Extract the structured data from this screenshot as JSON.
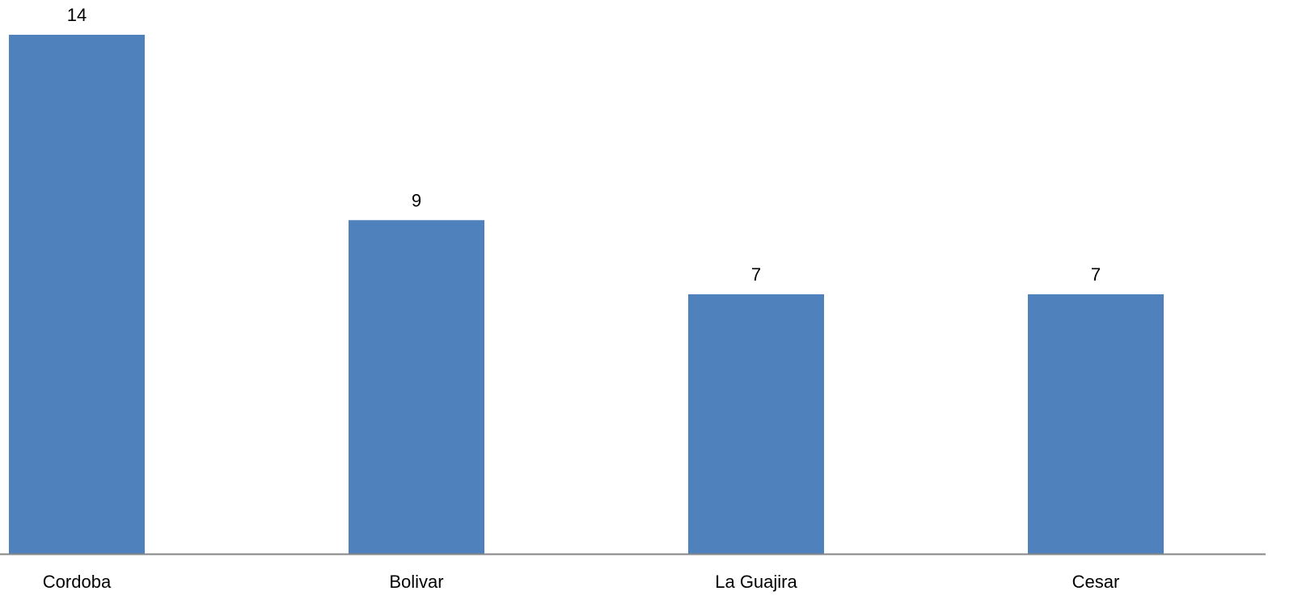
{
  "chart_data": {
    "type": "bar",
    "categories": [
      "Cordoba",
      "Bolivar",
      "La Guajira",
      "Cesar"
    ],
    "values": [
      14,
      9,
      7,
      7
    ],
    "ylim": [
      0,
      14
    ],
    "grid": false,
    "legend": "none",
    "bar_color": "#4F81BD",
    "axis_color": "#868686",
    "show_data_labels": true
  }
}
